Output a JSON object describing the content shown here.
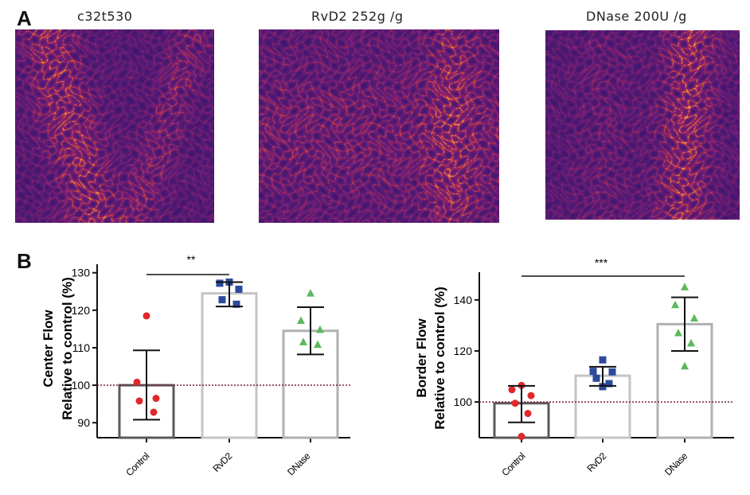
{
  "panels": {
    "a": "A",
    "b": "B"
  },
  "images": [
    {
      "title": "c32t530",
      "seed": 3,
      "scheme": "left-edge"
    },
    {
      "title": "RvD2 252g /g",
      "seed": 11,
      "scheme": "center"
    },
    {
      "title": "DNase 200U /g",
      "seed": 23,
      "scheme": "right-edge"
    }
  ],
  "colors": {
    "bar_control": "#5a5a5a",
    "bar_rvd2": "#c4c4c4",
    "bar_dnase": "#b0b0b0",
    "control": "#e0282c",
    "rvd2": "#2b4a9c",
    "dnase": "#5cb85c",
    "reference_line": "#7a1c34"
  },
  "chart_data": [
    {
      "type": "bar",
      "ylabel_line1": "Center Flow",
      "ylabel_line2": "Relative to control (%)",
      "categories": [
        "Control",
        "RvD2",
        "DNase"
      ],
      "values": [
        100,
        124.5,
        114.5
      ],
      "errors": [
        [
          90.8,
          109.3
        ],
        [
          121,
          127.5
        ],
        [
          108.2,
          120.8
        ]
      ],
      "points": [
        [
          118.5,
          100.8,
          96.5,
          95.8,
          92.8
        ],
        [
          127.5,
          127.2,
          125.6,
          122.8,
          121.6
        ],
        [
          124.5,
          117.2,
          114.8,
          111.5,
          110.8
        ]
      ],
      "ylim": [
        86,
        131
      ],
      "yticks": [
        90,
        100,
        110,
        120,
        130
      ],
      "reference": 100,
      "significance": {
        "text": "**",
        "from": 0,
        "to": 1
      }
    },
    {
      "type": "bar",
      "ylabel_line1": "Border Flow",
      "ylabel_line2": "Relative to control (%)",
      "categories": [
        "Control",
        "RvD2",
        "DNase"
      ],
      "values": [
        99.5,
        110.3,
        130.5
      ],
      "errors": [
        [
          92,
          106.3
        ],
        [
          106.3,
          113.8
        ],
        [
          120,
          141
        ]
      ],
      "points": [
        [
          106.5,
          104.8,
          102.5,
          99.5,
          95.5,
          86.5
        ],
        [
          116.5,
          112,
          111.8,
          109.3,
          107.2,
          106
        ],
        [
          145,
          138,
          132.8,
          127,
          123,
          114
        ]
      ],
      "ylim": [
        86,
        149
      ],
      "yticks": [
        100,
        120,
        140
      ],
      "reference": 100,
      "significance": {
        "text": "***",
        "from": 0,
        "to": 2
      }
    }
  ]
}
